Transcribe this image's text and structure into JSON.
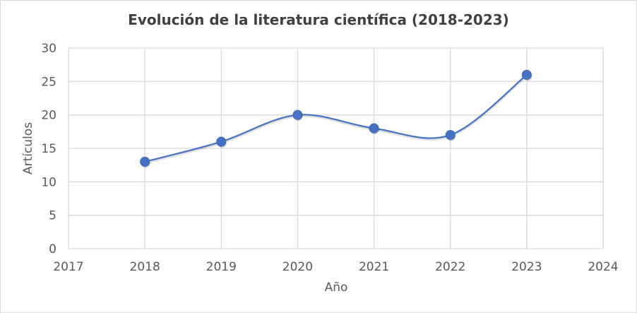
{
  "chart_data": {
    "type": "scatter",
    "title": "Evolución de la literatura científica (2018-2023)",
    "xlabel": "Año",
    "ylabel": "Artículos",
    "x": [
      2018,
      2019,
      2020,
      2021,
      2022,
      2023
    ],
    "y": [
      13,
      16,
      20,
      18,
      17,
      26
    ],
    "xlim": [
      2017,
      2024
    ],
    "ylim": [
      0,
      30
    ],
    "xticks": [
      2017,
      2018,
      2019,
      2020,
      2021,
      2022,
      2023,
      2024
    ],
    "yticks": [
      0,
      5,
      10,
      15,
      20,
      25,
      30
    ],
    "smooth_line": true,
    "grid": true,
    "line_color": "#4472c4",
    "marker_color": "#4472c4",
    "grid_color": "#d9d9d9"
  }
}
